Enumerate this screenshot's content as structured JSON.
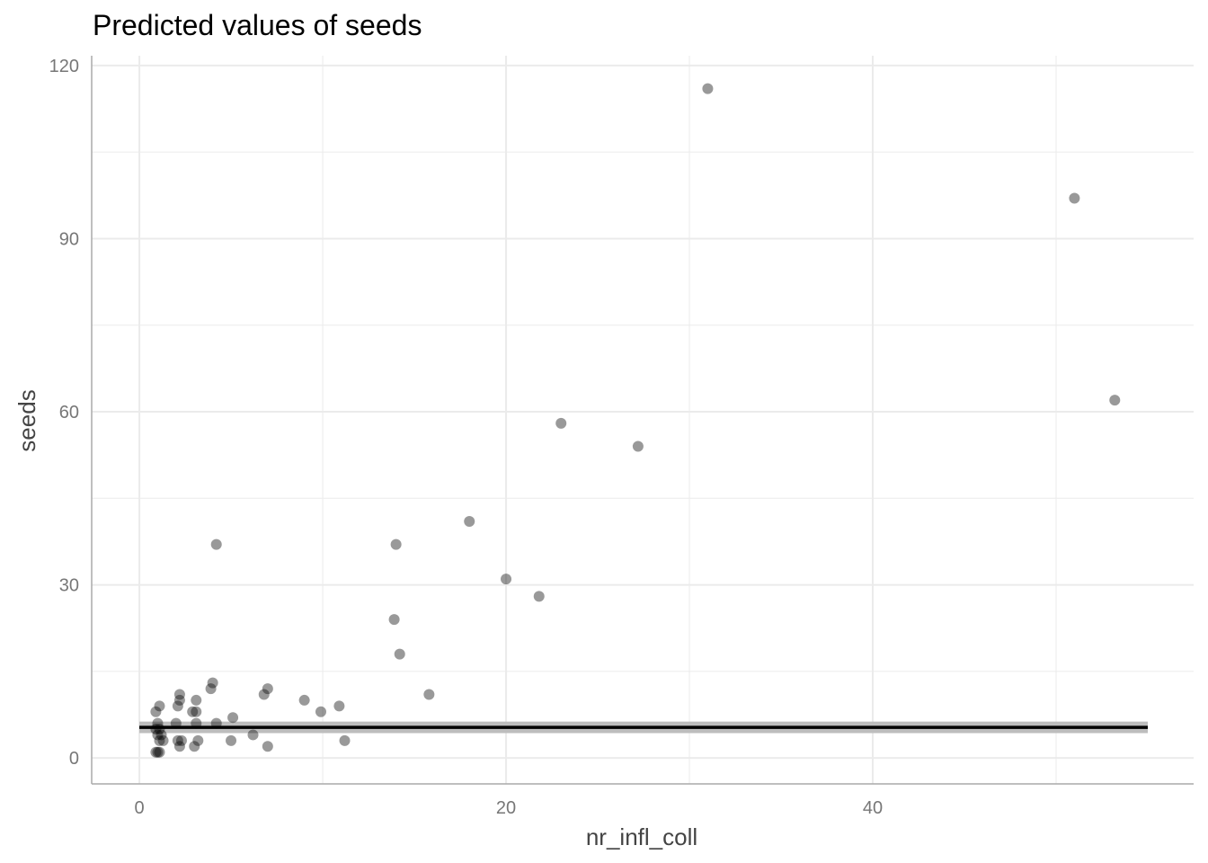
{
  "chart_data": {
    "type": "scatter",
    "title": "Predicted values of seeds",
    "xlabel": "nr_infl_coll",
    "ylabel": "seeds",
    "xlim": [
      -2.6,
      57.5
    ],
    "ylim": [
      -4.5,
      121.7
    ],
    "x_ticks": [
      0,
      20,
      40
    ],
    "x_tick_labels": [
      "0",
      "20",
      "40"
    ],
    "x_minor_ticks": [
      10,
      30,
      50
    ],
    "y_ticks": [
      0,
      30,
      60,
      90,
      120
    ],
    "y_tick_labels": [
      "0",
      "30",
      "60",
      "90",
      "120"
    ],
    "y_minor_ticks": [
      15,
      45,
      75,
      105
    ],
    "grid": true,
    "legend": "none",
    "points": [
      {
        "x": 31.0,
        "y": 116
      },
      {
        "x": 51.0,
        "y": 97
      },
      {
        "x": 53.2,
        "y": 62
      },
      {
        "x": 23.0,
        "y": 58
      },
      {
        "x": 27.2,
        "y": 54
      },
      {
        "x": 18.0,
        "y": 41
      },
      {
        "x": 4.2,
        "y": 37
      },
      {
        "x": 14.0,
        "y": 37
      },
      {
        "x": 20.0,
        "y": 31
      },
      {
        "x": 21.8,
        "y": 28
      },
      {
        "x": 13.9,
        "y": 24
      },
      {
        "x": 14.2,
        "y": 18
      },
      {
        "x": 15.8,
        "y": 11
      },
      {
        "x": 4.0,
        "y": 13
      },
      {
        "x": 3.9,
        "y": 12
      },
      {
        "x": 7.0,
        "y": 12
      },
      {
        "x": 6.8,
        "y": 11
      },
      {
        "x": 9.0,
        "y": 10
      },
      {
        "x": 10.9,
        "y": 9
      },
      {
        "x": 9.9,
        "y": 8
      },
      {
        "x": 2.2,
        "y": 11
      },
      {
        "x": 2.2,
        "y": 10
      },
      {
        "x": 2.1,
        "y": 9
      },
      {
        "x": 3.1,
        "y": 10
      },
      {
        "x": 1.1,
        "y": 9
      },
      {
        "x": 0.9,
        "y": 8
      },
      {
        "x": 2.9,
        "y": 8
      },
      {
        "x": 3.1,
        "y": 8
      },
      {
        "x": 5.1,
        "y": 7
      },
      {
        "x": 4.2,
        "y": 6
      },
      {
        "x": 1.0,
        "y": 6
      },
      {
        "x": 2.0,
        "y": 6
      },
      {
        "x": 3.1,
        "y": 6
      },
      {
        "x": 0.9,
        "y": 5
      },
      {
        "x": 1.1,
        "y": 5
      },
      {
        "x": 1.0,
        "y": 4
      },
      {
        "x": 1.2,
        "y": 4
      },
      {
        "x": 6.2,
        "y": 4
      },
      {
        "x": 1.1,
        "y": 3
      },
      {
        "x": 1.3,
        "y": 3
      },
      {
        "x": 2.1,
        "y": 3
      },
      {
        "x": 2.3,
        "y": 3
      },
      {
        "x": 3.2,
        "y": 3
      },
      {
        "x": 5.0,
        "y": 3
      },
      {
        "x": 11.2,
        "y": 3
      },
      {
        "x": 2.2,
        "y": 2
      },
      {
        "x": 3.0,
        "y": 2
      },
      {
        "x": 7.0,
        "y": 2
      },
      {
        "x": 0.9,
        "y": 1
      },
      {
        "x": 1.0,
        "y": 1
      },
      {
        "x": 1.1,
        "y": 1
      }
    ],
    "prediction": {
      "x_range": [
        0,
        55
      ],
      "y": 5.3,
      "ci": [
        4.3,
        6.3
      ]
    },
    "colors": {
      "points": "#000000",
      "point_opacity": 0.4,
      "line": "#000000",
      "ribbon": "#bdbdbd",
      "grid": "#ebebeb",
      "axis": "#aaaaaa",
      "tick_text": "#777777",
      "axis_title": "#444444"
    }
  }
}
